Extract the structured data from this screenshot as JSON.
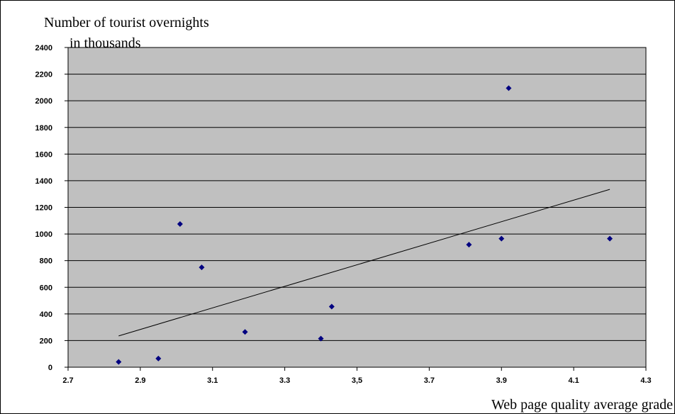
{
  "chart_data": {
    "type": "scatter",
    "ylabel_line1": "Number of tourist overnights",
    "ylabel_line2": "in thousands",
    "xlabel": "Web page quality average grade",
    "xlim": [
      2.7,
      4.3
    ],
    "ylim": [
      0,
      2400
    ],
    "x_ticks": [
      2.7,
      2.9,
      3.1,
      3.3,
      3.5,
      3.7,
      3.9,
      4.1,
      4.3
    ],
    "x_tick_labels": [
      "2.7",
      "2.9",
      "3.1",
      "3.3",
      "3,5",
      "3.7",
      "3.9",
      "4.1",
      "4.3"
    ],
    "y_ticks": [
      0,
      200,
      400,
      600,
      800,
      1000,
      1200,
      1400,
      1600,
      1800,
      2000,
      2200,
      2400
    ],
    "y_tick_labels": [
      "0",
      "200",
      "400",
      "600",
      "800",
      "1000",
      "1200",
      "1400",
      "1600",
      "1800",
      "2000",
      "2200",
      "2400"
    ],
    "grid": true,
    "legend": false,
    "points": [
      {
        "x": 2.84,
        "y": 40
      },
      {
        "x": 2.95,
        "y": 65
      },
      {
        "x": 3.01,
        "y": 1075
      },
      {
        "x": 3.07,
        "y": 750
      },
      {
        "x": 3.19,
        "y": 265
      },
      {
        "x": 3.4,
        "y": 215
      },
      {
        "x": 3.43,
        "y": 455
      },
      {
        "x": 3.81,
        "y": 920
      },
      {
        "x": 3.9,
        "y": 965
      },
      {
        "x": 3.92,
        "y": 2095
      },
      {
        "x": 4.2,
        "y": 965
      }
    ],
    "trendline": {
      "x": [
        2.84,
        4.2
      ],
      "y": [
        235,
        1335
      ]
    },
    "colors": {
      "plot_bg": "#c0c0c0",
      "grid": "#000000",
      "marker": "#000080",
      "trendline": "#000000",
      "frame": "#000000"
    }
  }
}
